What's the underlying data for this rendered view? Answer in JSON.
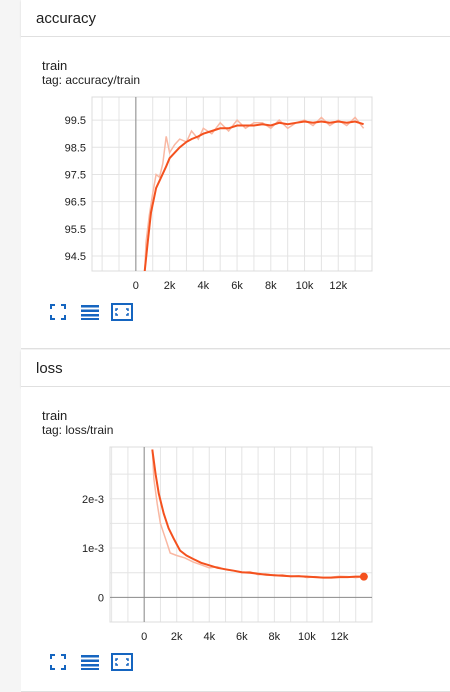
{
  "sections": [
    {
      "title": "accuracy",
      "run": "train",
      "tag": "tag: accuracy/train",
      "chart_data": {
        "type": "line",
        "title": "",
        "xlabel": "",
        "ylabel": "",
        "x_ticks": [
          "0",
          "2k",
          "4k",
          "6k",
          "8k",
          "10k",
          "12k"
        ],
        "y_ticks": [
          "99.5",
          "98.5",
          "97.5",
          "96.5",
          "95.5",
          "94.5"
        ],
        "series": [
          {
            "raw": [
              [
                500,
                93.5
              ],
              [
                600,
                95.0
              ],
              [
                800,
                96.0
              ],
              [
                1000,
                96.8
              ],
              [
                1200,
                97.5
              ],
              [
                1400,
                97.4
              ],
              [
                1600,
                97.9
              ],
              [
                1800,
                98.9
              ],
              [
                2000,
                98.3
              ],
              [
                2300,
                98.6
              ],
              [
                2600,
                98.8
              ],
              [
                3000,
                98.7
              ],
              [
                3300,
                99.1
              ],
              [
                3700,
                98.8
              ],
              [
                4000,
                99.2
              ],
              [
                4500,
                99.0
              ],
              [
                5000,
                99.4
              ],
              [
                5500,
                99.1
              ],
              [
                6000,
                99.5
              ],
              [
                6500,
                99.2
              ],
              [
                7000,
                99.4
              ],
              [
                7500,
                99.4
              ],
              [
                8000,
                99.2
              ],
              [
                8500,
                99.5
              ],
              [
                9000,
                99.2
              ],
              [
                9500,
                99.4
              ],
              [
                10000,
                99.5
              ],
              [
                10500,
                99.3
              ],
              [
                11000,
                99.6
              ],
              [
                11500,
                99.3
              ],
              [
                12000,
                99.5
              ],
              [
                12500,
                99.3
              ],
              [
                13000,
                99.6
              ],
              [
                13500,
                99.2
              ]
            ],
            "smoothed": [
              [
                500,
                93.8
              ],
              [
                700,
                95.0
              ],
              [
                900,
                96.1
              ],
              [
                1200,
                97.0
              ],
              [
                1500,
                97.4
              ],
              [
                1800,
                97.8
              ],
              [
                2000,
                98.1
              ],
              [
                2300,
                98.3
              ],
              [
                2600,
                98.5
              ],
              [
                3000,
                98.7
              ],
              [
                3300,
                98.8
              ],
              [
                3700,
                98.9
              ],
              [
                4000,
                99.0
              ],
              [
                4500,
                99.1
              ],
              [
                5000,
                99.2
              ],
              [
                5500,
                99.2
              ],
              [
                6000,
                99.3
              ],
              [
                6500,
                99.3
              ],
              [
                7000,
                99.3
              ],
              [
                7500,
                99.35
              ],
              [
                8000,
                99.3
              ],
              [
                8500,
                99.4
              ],
              [
                9000,
                99.35
              ],
              [
                9500,
                99.4
              ],
              [
                10000,
                99.45
              ],
              [
                10500,
                99.4
              ],
              [
                11000,
                99.45
              ],
              [
                11500,
                99.4
              ],
              [
                12000,
                99.45
              ],
              [
                12500,
                99.4
              ],
              [
                13000,
                99.45
              ],
              [
                13500,
                99.35
              ]
            ]
          }
        ],
        "colors": {
          "smoothed": "#f4511e",
          "raw": "#f9b8a3"
        }
      }
    },
    {
      "title": "loss",
      "run": "train",
      "tag": "tag: loss/train",
      "chart_data": {
        "type": "line",
        "title": "",
        "xlabel": "",
        "ylabel": "",
        "x_ticks": [
          "0",
          "2k",
          "4k",
          "6k",
          "8k",
          "10k",
          "12k"
        ],
        "y_ticks": [
          "2e-3",
          "1e-3",
          "0"
        ],
        "series": [
          {
            "raw": [
              [
                500,
                0.003
              ],
              [
                600,
                0.0024
              ],
              [
                800,
                0.0019
              ],
              [
                1000,
                0.0015
              ],
              [
                1200,
                0.0013
              ],
              [
                1400,
                0.0011
              ],
              [
                1600,
                0.0009
              ],
              [
                2000,
                0.00085
              ],
              [
                2500,
                0.0008
              ],
              [
                3000,
                0.00072
              ],
              [
                3500,
                0.00066
              ],
              [
                4000,
                0.0006
              ],
              [
                4500,
                0.00062
              ],
              [
                5000,
                0.00056
              ],
              [
                5500,
                0.00054
              ],
              [
                6000,
                0.0005
              ],
              [
                6500,
                0.00052
              ],
              [
                7000,
                0.00046
              ],
              [
                7500,
                0.00048
              ],
              [
                8000,
                0.00044
              ],
              [
                8500,
                0.00046
              ],
              [
                9000,
                0.00042
              ],
              [
                9500,
                0.00044
              ],
              [
                10000,
                0.0004
              ],
              [
                10500,
                0.00042
              ],
              [
                11000,
                0.0004
              ],
              [
                11500,
                0.00041
              ],
              [
                12000,
                0.00043
              ],
              [
                12500,
                0.00042
              ],
              [
                13000,
                0.0004
              ],
              [
                13500,
                0.00042
              ]
            ],
            "smoothed": [
              [
                500,
                0.003
              ],
              [
                700,
                0.0025
              ],
              [
                900,
                0.0021
              ],
              [
                1200,
                0.0017
              ],
              [
                1500,
                0.0014
              ],
              [
                1800,
                0.0012
              ],
              [
                2200,
                0.00095
              ],
              [
                2600,
                0.00085
              ],
              [
                3000,
                0.00078
              ],
              [
                3500,
                0.0007
              ],
              [
                4000,
                0.00065
              ],
              [
                4500,
                0.0006
              ],
              [
                5000,
                0.00057
              ],
              [
                5500,
                0.00054
              ],
              [
                6000,
                0.00051
              ],
              [
                6500,
                0.0005
              ],
              [
                7000,
                0.00048
              ],
              [
                7500,
                0.00046
              ],
              [
                8000,
                0.00045
              ],
              [
                8500,
                0.00044
              ],
              [
                9000,
                0.00043
              ],
              [
                9500,
                0.00043
              ],
              [
                10000,
                0.00042
              ],
              [
                10500,
                0.00041
              ],
              [
                11000,
                0.0004
              ],
              [
                11500,
                0.0004
              ],
              [
                12000,
                0.00041
              ],
              [
                12500,
                0.00041
              ],
              [
                13000,
                0.00042
              ],
              [
                13500,
                0.00042
              ]
            ],
            "last_point": [
              13500,
              0.00042
            ]
          }
        ],
        "colors": {
          "smoothed": "#f4511e",
          "raw": "#f9b8a3"
        }
      }
    }
  ],
  "toolbar": {
    "fit_icon": "fullscreen-icon",
    "list_icon": "list-icon",
    "fit_domain_icon": "fit-domain-icon",
    "icon_color": "#1565c0"
  }
}
